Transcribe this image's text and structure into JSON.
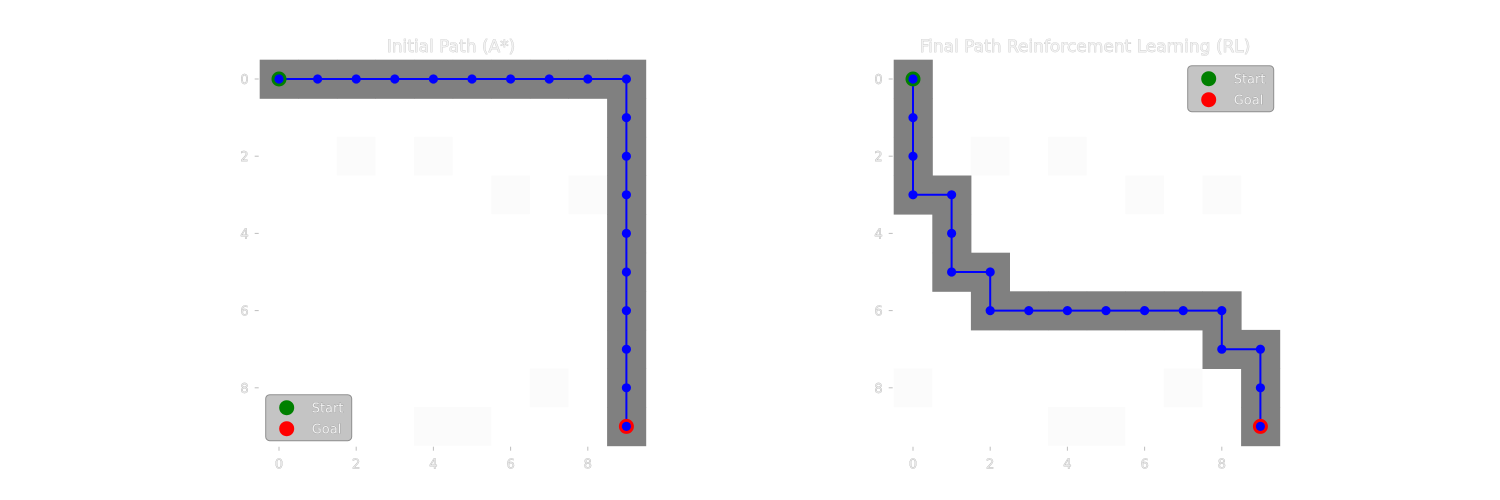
{
  "chart_data": [
    {
      "type": "scatter",
      "title": "Initial Path (A*)",
      "grid_size": 10,
      "xlabel": "",
      "ylabel": "",
      "xlim": [
        -0.5,
        9.5
      ],
      "ylim": [
        9.5,
        -0.5
      ],
      "y_inverted": true,
      "x_ticks": [
        "0",
        "2",
        "4",
        "6",
        "8"
      ],
      "y_ticks": [
        "0",
        "2",
        "4",
        "6",
        "8"
      ],
      "grid": false,
      "legend_placement": "lower-left",
      "legend": [
        "Start",
        "Goal"
      ],
      "start": [
        0,
        0
      ],
      "goal": [
        9,
        9
      ],
      "path": [
        [
          0,
          0
        ],
        [
          1,
          0
        ],
        [
          2,
          0
        ],
        [
          3,
          0
        ],
        [
          4,
          0
        ],
        [
          5,
          0
        ],
        [
          6,
          0
        ],
        [
          7,
          0
        ],
        [
          8,
          0
        ],
        [
          9,
          0
        ],
        [
          9,
          1
        ],
        [
          9,
          2
        ],
        [
          9,
          3
        ],
        [
          9,
          4
        ],
        [
          9,
          5
        ],
        [
          9,
          6
        ],
        [
          9,
          7
        ],
        [
          9,
          8
        ],
        [
          9,
          9
        ]
      ],
      "faint_cells": [
        [
          2,
          2
        ],
        [
          4,
          2
        ],
        [
          6,
          3
        ],
        [
          8,
          3
        ],
        [
          7,
          8
        ],
        [
          4,
          9
        ],
        [
          5,
          9
        ]
      ]
    },
    {
      "type": "scatter",
      "title": "Final Path Reinforcement Learning (RL)",
      "grid_size": 10,
      "xlabel": "",
      "ylabel": "",
      "xlim": [
        -0.5,
        9.5
      ],
      "ylim": [
        9.5,
        -0.5
      ],
      "y_inverted": true,
      "x_ticks": [
        "0",
        "2",
        "4",
        "6",
        "8"
      ],
      "y_ticks": [
        "0",
        "2",
        "4",
        "6",
        "8"
      ],
      "grid": false,
      "legend_placement": "upper-right",
      "legend": [
        "Start",
        "Goal"
      ],
      "start": [
        0,
        0
      ],
      "goal": [
        9,
        9
      ],
      "path": [
        [
          0,
          0
        ],
        [
          0,
          1
        ],
        [
          0,
          2
        ],
        [
          0,
          3
        ],
        [
          1,
          3
        ],
        [
          1,
          4
        ],
        [
          1,
          5
        ],
        [
          2,
          5
        ],
        [
          2,
          6
        ],
        [
          3,
          6
        ],
        [
          4,
          6
        ],
        [
          5,
          6
        ],
        [
          6,
          6
        ],
        [
          7,
          6
        ],
        [
          8,
          6
        ],
        [
          8,
          7
        ],
        [
          9,
          7
        ],
        [
          9,
          8
        ],
        [
          9,
          9
        ]
      ],
      "faint_cells": [
        [
          2,
          2
        ],
        [
          4,
          2
        ],
        [
          6,
          3
        ],
        [
          8,
          3
        ],
        [
          0,
          8
        ],
        [
          7,
          8
        ],
        [
          4,
          9
        ],
        [
          5,
          9
        ]
      ]
    }
  ],
  "colors": {
    "path_band": "#808080",
    "path_line": "#0000ff",
    "start": "#008000",
    "goal": "#ff0000",
    "faint_cell": "#fbfbfb",
    "legend_bg": "#c4c4c4"
  }
}
